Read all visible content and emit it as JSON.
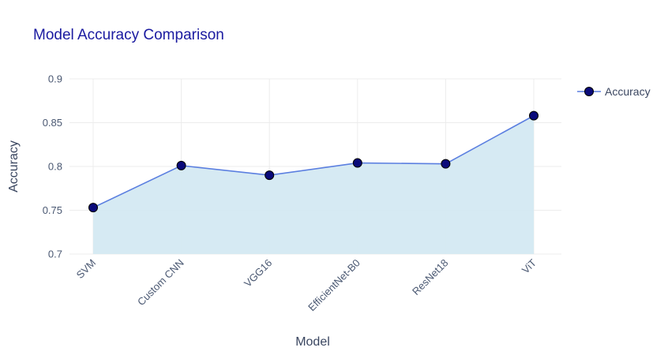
{
  "chart_data": {
    "type": "area",
    "title": "Model Accuracy Comparison",
    "xlabel": "Model",
    "ylabel": "Accuracy",
    "categories": [
      "SVM",
      "Custom CNN",
      "VGG16",
      "EfficientNet-B0",
      "ResNet18",
      "ViT"
    ],
    "series": [
      {
        "name": "Accuracy",
        "values": [
          0.753,
          0.801,
          0.79,
          0.804,
          0.803,
          0.858
        ]
      }
    ],
    "ylim": [
      0.7,
      0.9
    ],
    "yticks": [
      "0.7",
      "0.75",
      "0.8",
      "0.85",
      "0.9"
    ],
    "grid": true,
    "legend_position": "top-right",
    "colors": {
      "line": "#5b7fe0",
      "marker_fill": "#0a0a7a",
      "marker_stroke": "#000000",
      "area_fill": "#d4e9f2",
      "title": "#1a1aa0"
    }
  }
}
